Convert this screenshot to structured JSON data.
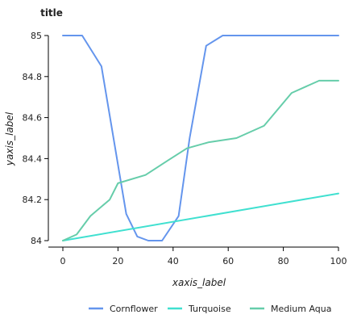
{
  "chart_data": {
    "type": "line",
    "title": "title",
    "xlabel": "xaxis_label",
    "ylabel": "yaxis_label",
    "xlim": [
      0,
      100
    ],
    "ylim": [
      84,
      85
    ],
    "x_ticks": [
      0,
      20,
      40,
      60,
      80,
      100
    ],
    "y_ticks": [
      84,
      84.2,
      84.4,
      84.6,
      84.8,
      85
    ],
    "grid": false,
    "legend_position": "bottom",
    "series": [
      {
        "name": "Cornflower",
        "color": "#6495ED",
        "points": [
          [
            0,
            85
          ],
          [
            7,
            85
          ],
          [
            14,
            84.85
          ],
          [
            19,
            84.45
          ],
          [
            23,
            84.13
          ],
          [
            27,
            84.02
          ],
          [
            31,
            84
          ],
          [
            36,
            84
          ],
          [
            42,
            84.12
          ],
          [
            46,
            84.5
          ],
          [
            52,
            84.95
          ],
          [
            58,
            85
          ],
          [
            100,
            85
          ]
        ]
      },
      {
        "name": "Turquoise",
        "color": "#40E0D0",
        "points": [
          [
            0,
            84
          ],
          [
            100,
            84.23
          ]
        ]
      },
      {
        "name": "Medium Aqua",
        "color": "#66CDAA",
        "points": [
          [
            0,
            84
          ],
          [
            5,
            84.03
          ],
          [
            10,
            84.12
          ],
          [
            17,
            84.2
          ],
          [
            20,
            84.28
          ],
          [
            30,
            84.32
          ],
          [
            38,
            84.39
          ],
          [
            45,
            84.45
          ],
          [
            53,
            84.48
          ],
          [
            63,
            84.5
          ],
          [
            73,
            84.56
          ],
          [
            83,
            84.72
          ],
          [
            93,
            84.78
          ],
          [
            100,
            84.78
          ]
        ]
      }
    ]
  }
}
